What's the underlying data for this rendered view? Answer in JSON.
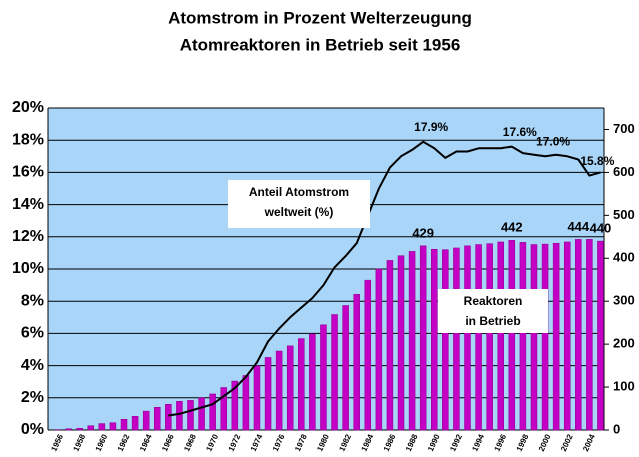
{
  "chart_data": {
    "type": "bar",
    "title": [
      "Atomstrom in Prozent Welterzeugung",
      "Atomreaktoren in Betrieb seit 1956"
    ],
    "categories": [
      "1956",
      null,
      "1958",
      null,
      "1960",
      null,
      "1962",
      null,
      "1964",
      null,
      "1966",
      null,
      "1968",
      null,
      "1970",
      null,
      "1972",
      null,
      "1974",
      null,
      "1976",
      null,
      "1978",
      null,
      "1980",
      null,
      "1982",
      null,
      "1984",
      null,
      "1986",
      null,
      "1988",
      null,
      "1990",
      null,
      "1992",
      null,
      "1994",
      null,
      "1996",
      null,
      "1998",
      null,
      "2000",
      null,
      "2002",
      null,
      "2004",
      null
    ],
    "series": [
      {
        "name": "Reaktoren in Betrieb",
        "type": "bar",
        "axis": "y2",
        "color": "#c400c4",
        "values": [
          1,
          3,
          4,
          10,
          15,
          17,
          25,
          32,
          44,
          53,
          60,
          67,
          69,
          75,
          84,
          99,
          114,
          127,
          150,
          169,
          184,
          196,
          213,
          224,
          245,
          269,
          290,
          316,
          349,
          375,
          395,
          406,
          416,
          429,
          421,
          420,
          424,
          429,
          432,
          434,
          438,
          442,
          437,
          432,
          433,
          435,
          438,
          444,
          444,
          440
        ],
        "value_labels": [
          null,
          null,
          null,
          null,
          null,
          null,
          null,
          null,
          null,
          null,
          null,
          null,
          null,
          null,
          null,
          null,
          null,
          null,
          null,
          null,
          null,
          null,
          null,
          null,
          null,
          null,
          null,
          null,
          null,
          null,
          null,
          null,
          null,
          "429",
          null,
          null,
          null,
          null,
          null,
          null,
          null,
          "442",
          null,
          null,
          null,
          null,
          null,
          "444",
          null,
          "440"
        ]
      },
      {
        "name": "Anteil Atomstrom weltweit (%)",
        "type": "line",
        "axis": "y",
        "color": "#000000",
        "values": [
          null,
          null,
          null,
          null,
          null,
          null,
          null,
          null,
          null,
          null,
          0.9,
          1.0,
          1.2,
          1.4,
          1.6,
          2.1,
          2.6,
          3.3,
          4.2,
          5.5,
          6.3,
          7.0,
          7.6,
          8.2,
          9.0,
          10.1,
          10.8,
          11.6,
          13.3,
          15.0,
          16.3,
          17.0,
          17.4,
          17.9,
          17.5,
          16.9,
          17.3,
          17.3,
          17.5,
          17.5,
          17.5,
          17.6,
          17.2,
          17.1,
          17.0,
          17.1,
          17.0,
          16.8,
          15.8,
          16.0
        ],
        "value_labels": [
          null,
          null,
          null,
          null,
          null,
          null,
          null,
          null,
          null,
          null,
          null,
          null,
          null,
          null,
          null,
          null,
          null,
          null,
          null,
          null,
          null,
          null,
          null,
          null,
          null,
          null,
          null,
          null,
          null,
          null,
          null,
          null,
          null,
          "17.9%",
          null,
          null,
          null,
          null,
          null,
          null,
          null,
          "17.6%",
          null,
          null,
          "17.0%",
          null,
          null,
          null,
          "15.8%",
          null
        ]
      }
    ],
    "annotations": [
      [
        "Anteil Atomstrom",
        "weltweit (%)"
      ],
      [
        "Reaktoren",
        "in Betrieb"
      ]
    ],
    "ylim": [
      0,
      20
    ],
    "yticks": [
      {
        "value": 0,
        "label": "0%"
      },
      {
        "value": 2,
        "label": "2%"
      },
      {
        "value": 4,
        "label": "4%"
      },
      {
        "value": 6,
        "label": "6%"
      },
      {
        "value": 8,
        "label": "8%"
      },
      {
        "value": 10,
        "label": "10%"
      },
      {
        "value": 12,
        "label": "12%"
      },
      {
        "value": 14,
        "label": "14%"
      },
      {
        "value": 16,
        "label": "16%"
      },
      {
        "value": 18,
        "label": "18%"
      },
      {
        "value": 20,
        "label": "20%"
      }
    ],
    "y2lim": [
      0,
      750
    ],
    "y2ticks": [
      0,
      100,
      200,
      300,
      400,
      500,
      600,
      700
    ],
    "grid": true,
    "background": "#a9d5f8"
  }
}
